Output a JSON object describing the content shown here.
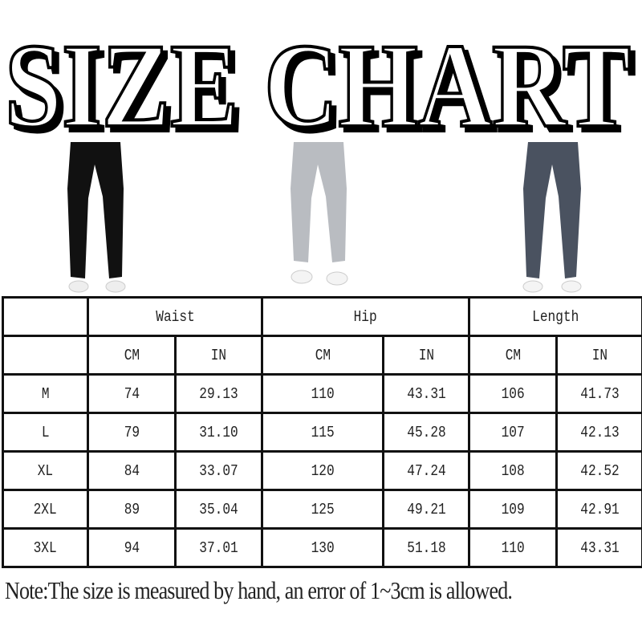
{
  "title": "SIZE CHART",
  "products": [
    {
      "color_name": "black",
      "color": "#111111"
    },
    {
      "color_name": "light-grey",
      "color": "#b9bcc1"
    },
    {
      "color_name": "dark-grey",
      "color": "#4a5260"
    }
  ],
  "table": {
    "groups": [
      "Waist",
      "Hip",
      "Length"
    ],
    "units": [
      "CM",
      "IN",
      "CM",
      "IN",
      "CM",
      "IN"
    ],
    "rows": [
      {
        "size": "M",
        "values": [
          "74",
          "29.13",
          "110",
          "43.31",
          "106",
          "41.73"
        ]
      },
      {
        "size": "L",
        "values": [
          "79",
          "31.10",
          "115",
          "45.28",
          "107",
          "42.13"
        ]
      },
      {
        "size": "XL",
        "values": [
          "84",
          "33.07",
          "120",
          "47.24",
          "108",
          "42.52"
        ]
      },
      {
        "size": "2XL",
        "values": [
          "89",
          "35.04",
          "125",
          "49.21",
          "109",
          "42.91"
        ]
      },
      {
        "size": "3XL",
        "values": [
          "94",
          "37.01",
          "130",
          "51.18",
          "110",
          "43.31"
        ]
      }
    ]
  },
  "note": "Note:The size is measured by hand, an error of 1~3cm is allowed."
}
